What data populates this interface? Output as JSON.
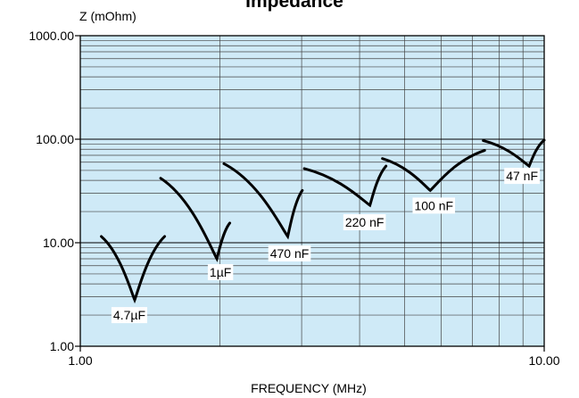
{
  "chart_data": {
    "type": "line",
    "title": "Impedance",
    "ylabel": "Z (mOhm)",
    "xlabel": "FREQUENCY (MHz)",
    "x_scale": "log",
    "y_scale": "log",
    "xlim": [
      1.0,
      10.0
    ],
    "ylim": [
      1.0,
      1000.0
    ],
    "x_ticks": [
      {
        "value": 1.0,
        "label": "1.00"
      },
      {
        "value": 10.0,
        "label": "10.00"
      }
    ],
    "y_ticks": [
      {
        "value": 1.0,
        "label": "1.00"
      },
      {
        "value": 10.0,
        "label": "10.00"
      },
      {
        "value": 100.0,
        "label": "100.00"
      },
      {
        "value": 1000.0,
        "label": "1000.00"
      }
    ],
    "grid": true,
    "background_color": "#cfeaf7",
    "line_color": "#000000",
    "series": [
      {
        "name": "4.7µF",
        "x": [
          1.11,
          1.31,
          1.52
        ],
        "y": [
          11.5,
          2.8,
          11.5
        ]
      },
      {
        "name": "1µF",
        "x": [
          1.49,
          1.97,
          2.1
        ],
        "y": [
          42,
          7.0,
          15.5
        ]
      },
      {
        "name": "470 nF",
        "x": [
          2.04,
          2.8,
          3.01
        ],
        "y": [
          58,
          11.5,
          32
        ]
      },
      {
        "name": "220 nF",
        "x": [
          3.04,
          4.21,
          4.56
        ],
        "y": [
          52,
          23,
          55
        ]
      },
      {
        "name": "100 nF",
        "x": [
          4.48,
          5.68,
          7.44
        ],
        "y": [
          65,
          32,
          78
        ]
      },
      {
        "name": "47 nF",
        "x": [
          7.39,
          9.28,
          10.0
        ],
        "y": [
          97,
          55,
          98
        ]
      }
    ]
  }
}
